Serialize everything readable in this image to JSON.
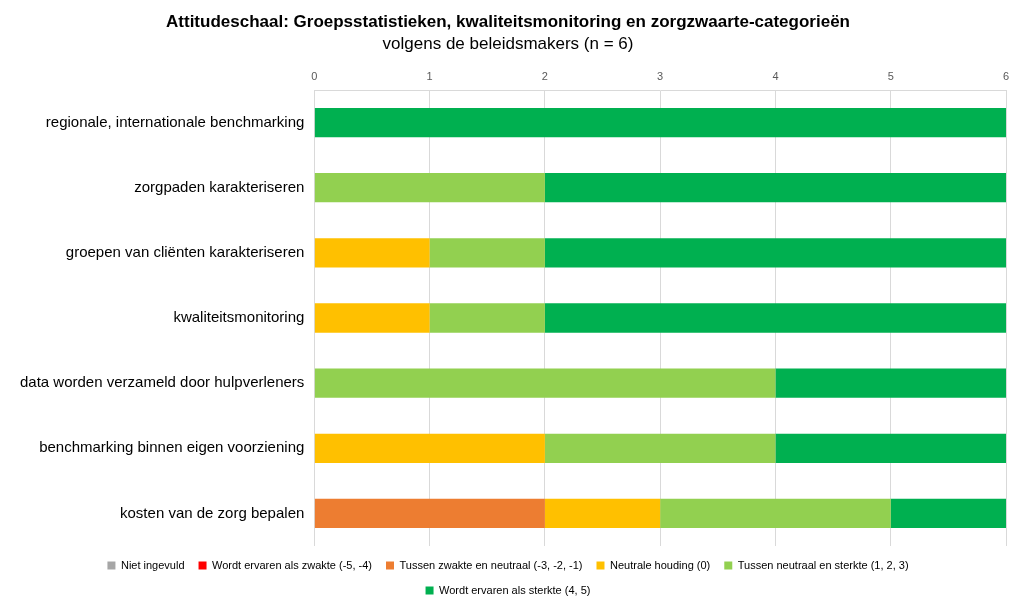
{
  "chart_data": {
    "type": "bar",
    "orientation": "horizontal",
    "stacked": true,
    "title": "Attitudeschaal: Groepsstatistieken, kwaliteitsmonitoring en zorgzwaarte-categorieën",
    "subtitle": "volgens de beleidsmakers (n = 6)",
    "categories": [
      "regionale, internationale benchmarking",
      "zorgpaden karakteriseren",
      "groepen van cliënten karakteriseren",
      "kwaliteitsmonitoring",
      "data worden verzameld door hulpverleners",
      "benchmarking binnen eigen voorziening",
      "kosten van de zorg bepalen"
    ],
    "series": [
      {
        "name": "Niet ingevuld",
        "color": "#a6a6a6",
        "values": [
          0,
          0,
          0,
          0,
          0,
          0,
          0
        ]
      },
      {
        "name": "Wordt ervaren als zwakte (-5, -4)",
        "color": "#ff0000",
        "values": [
          0,
          0,
          0,
          0,
          0,
          0,
          0
        ]
      },
      {
        "name": "Tussen zwakte en neutraal (-3, -2, -1)",
        "color": "#ed7d31",
        "values": [
          0,
          0,
          0,
          0,
          0,
          0,
          2
        ]
      },
      {
        "name": "Neutrale houding (0)",
        "color": "#ffc000",
        "values": [
          0,
          0,
          1,
          1,
          0,
          2,
          1
        ]
      },
      {
        "name": "Tussen neutraal en sterkte (1, 2, 3)",
        "color": "#92d050",
        "values": [
          0,
          2,
          1,
          1,
          4,
          2,
          2
        ]
      },
      {
        "name": "Wordt ervaren als sterkte (4, 5)",
        "color": "#00b050",
        "values": [
          6,
          4,
          4,
          4,
          2,
          2,
          1
        ]
      }
    ],
    "xlim": [
      0,
      6
    ],
    "xticks": [
      0,
      1,
      2,
      3,
      4,
      5,
      6
    ],
    "grid": true,
    "legend": "bottom"
  }
}
